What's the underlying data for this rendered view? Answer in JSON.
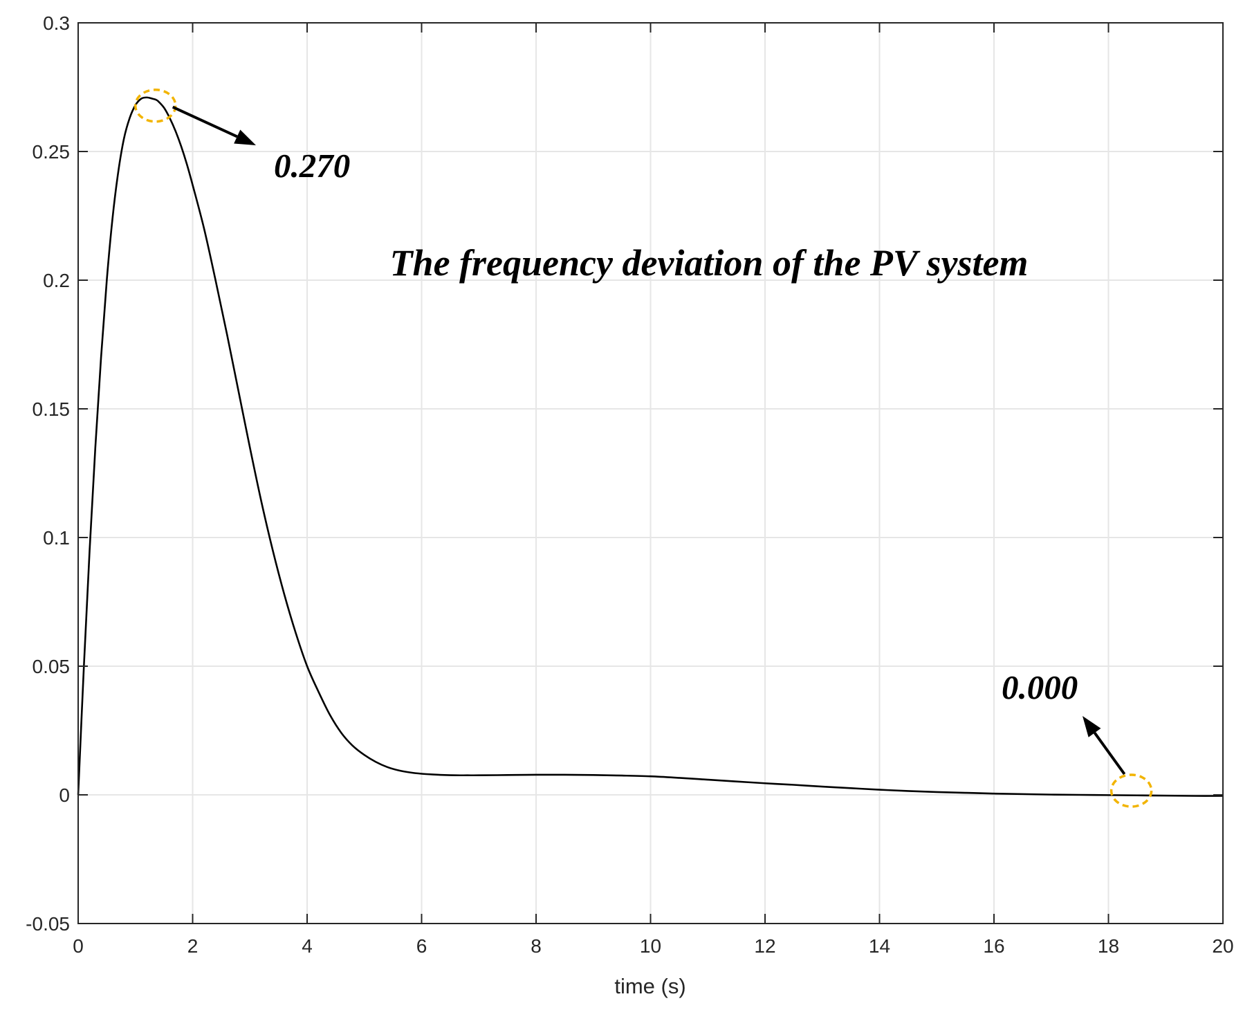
{
  "chart_data": {
    "type": "line",
    "title": "",
    "xlabel": "time (s)",
    "ylabel": "",
    "xlim": [
      0,
      20
    ],
    "ylim": [
      -0.05,
      0.3
    ],
    "grid": true,
    "xticks": [
      0,
      2,
      4,
      6,
      8,
      10,
      12,
      14,
      16,
      18,
      20
    ],
    "yticks": [
      -0.05,
      0,
      0.05,
      0.1,
      0.15,
      0.2,
      0.25,
      0.3
    ],
    "xtick_labels": [
      "0",
      "2",
      "4",
      "6",
      "8",
      "10",
      "12",
      "14",
      "16",
      "18",
      "20"
    ],
    "ytick_labels": [
      "-0.05",
      "0",
      "0.05",
      "0.1",
      "0.15",
      "0.2",
      "0.25",
      "0.3"
    ],
    "series": [
      {
        "name": "The frequency deviation of the PV system",
        "x": [
          0,
          0.1,
          0.2,
          0.3,
          0.4,
          0.5,
          0.6,
          0.7,
          0.8,
          0.9,
          1.0,
          1.1,
          1.2,
          1.3,
          1.35,
          1.4,
          1.5,
          1.6,
          1.7,
          1.8,
          1.9,
          2.0,
          2.2,
          2.4,
          2.6,
          2.8,
          3.0,
          3.2,
          3.4,
          3.6,
          3.8,
          4.0,
          4.2,
          4.4,
          4.6,
          4.8,
          5.0,
          5.2,
          5.4,
          5.6,
          5.8,
          6.0,
          6.2,
          6.4,
          6.6,
          6.8,
          7.0,
          7.5,
          8.0,
          8.5,
          9.0,
          9.5,
          10.0,
          10.5,
          11.0,
          11.5,
          12.0,
          12.5,
          13.0,
          13.5,
          14.0,
          14.5,
          15.0,
          15.5,
          16.0,
          16.5,
          17.0,
          17.5,
          18.0,
          18.5,
          19.0,
          19.5,
          20.0
        ],
        "values": [
          0,
          0.05,
          0.095,
          0.135,
          0.17,
          0.2,
          0.224,
          0.242,
          0.255,
          0.263,
          0.268,
          0.2705,
          0.271,
          0.2705,
          0.2702,
          0.2695,
          0.267,
          0.263,
          0.258,
          0.252,
          0.245,
          0.237,
          0.22,
          0.2,
          0.179,
          0.157,
          0.135,
          0.114,
          0.095,
          0.078,
          0.063,
          0.05,
          0.04,
          0.031,
          0.024,
          0.019,
          0.0155,
          0.0128,
          0.0108,
          0.0095,
          0.0087,
          0.0082,
          0.0079,
          0.0077,
          0.0076,
          0.0076,
          0.0076,
          0.0077,
          0.0078,
          0.0078,
          0.0077,
          0.0075,
          0.0072,
          0.0066,
          0.0059,
          0.0052,
          0.0045,
          0.0039,
          0.0032,
          0.0026,
          0.002,
          0.0015,
          0.0011,
          0.0008,
          0.0005,
          0.0003,
          0.0001,
          0.0,
          -0.0001,
          -0.0002,
          -0.0003,
          -0.0004,
          -0.0004
        ]
      }
    ],
    "annotations": [
      {
        "text": "0.270",
        "point_x": 1.35,
        "point_y": 0.2705,
        "label_x": 3.4,
        "label_y": 0.245
      },
      {
        "text": "0.000",
        "point_x": 18.4,
        "point_y": 0.0,
        "label_x": 18.1,
        "label_y": 0.03
      }
    ],
    "title_annotation": "The frequency deviation of the PV system",
    "colors": {
      "line": "#000000",
      "grid": "#e6e6e6",
      "axes": "#262626",
      "highlight": "#f2b400",
      "background": "#ffffff"
    }
  }
}
